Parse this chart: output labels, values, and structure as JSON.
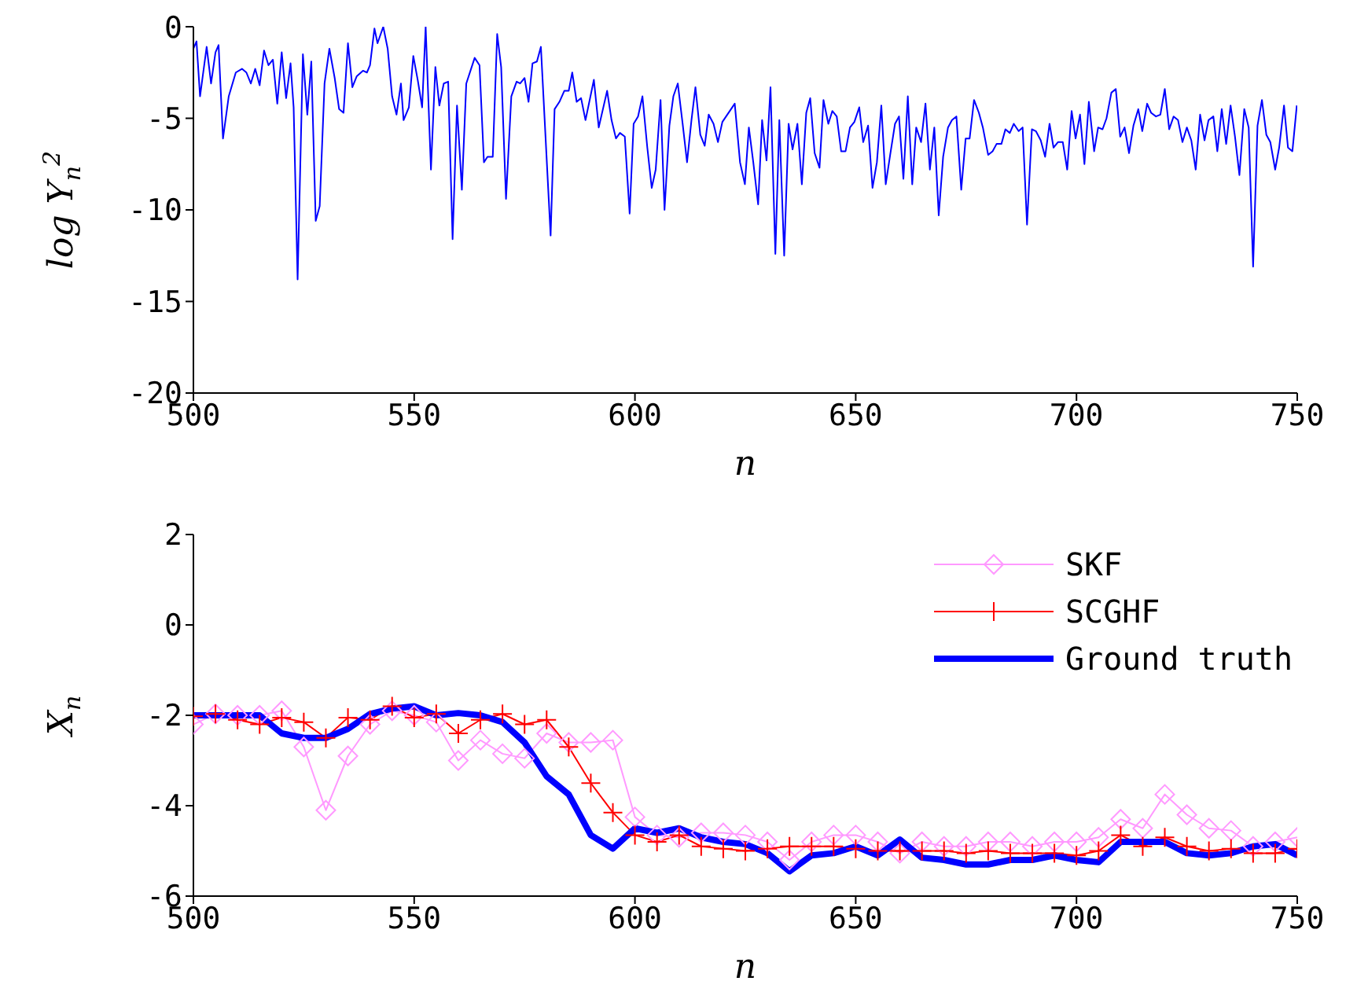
{
  "chart_data": [
    {
      "type": "line",
      "xlabel": "n",
      "ylabel": "log Y$_{n}$$^{2}$",
      "x": [
        500,
        500.7,
        501.5,
        503,
        504,
        505,
        505.7,
        506.7,
        508,
        509.6,
        511,
        512,
        513,
        514,
        515,
        516,
        517,
        518,
        519,
        520,
        521,
        522,
        522.7,
        523.6,
        524.8,
        525.8,
        526.7,
        527.7,
        528.6,
        529.7,
        530.8,
        532,
        533,
        534,
        535,
        536,
        537,
        538.4,
        539.3,
        540,
        541,
        541.7,
        543,
        544,
        545,
        546,
        547,
        547.6,
        548.8,
        549.8,
        550.8,
        551.8,
        552.6,
        553.8,
        554.8,
        555.7,
        556.7,
        557.7,
        558.7,
        559.7,
        560.8,
        561.8,
        563.7,
        564.8,
        565.8,
        566.6,
        567.8,
        568.8,
        569.7,
        570.8,
        572,
        573.2,
        574,
        575,
        575.9,
        576.8,
        577.8,
        578.7,
        580.9,
        581.8,
        582.9,
        584,
        585,
        585.8,
        586.8,
        587.8,
        588.8,
        590.7,
        591.8,
        593.7,
        594.7,
        595.7,
        596.6,
        597.7,
        598.8,
        599.7,
        600.7,
        601.7,
        602.8,
        603.8,
        604.7,
        605.8,
        606.7,
        607.8,
        608.7,
        609.7,
        610.8,
        611.8,
        612.8,
        613.7,
        614.8,
        615.8,
        616.7,
        617.8,
        618.8,
        619.8,
        622.6,
        623.8,
        624.9,
        625.8,
        626.8,
        627.9,
        628.8,
        629.8,
        630.7,
        631.8,
        632.7,
        633.8,
        634.8,
        635.7,
        636.8,
        637.8,
        638.8,
        639.7,
        640.7,
        641.8,
        642.7,
        643.8,
        644.7,
        645.7,
        646.7,
        647.7,
        648.7,
        649.7,
        650.8,
        651.7,
        652.8,
        653.8,
        654.8,
        655.8,
        656.8,
        657.8,
        658.9,
        659.8,
        660.8,
        661.8,
        662.8,
        663.7,
        664.8,
        665.8,
        666.8,
        667.8,
        668.8,
        669.8,
        670.9,
        671.8,
        672.8,
        673.9,
        674.9,
        675.8,
        676.8,
        677.9,
        678.8,
        680,
        681,
        681.9,
        683,
        683.9,
        684.9,
        685.8,
        686.9,
        687.8,
        688.8,
        689.9,
        690.8,
        691.9,
        692.9,
        693.9,
        694.8,
        695.8,
        696.9,
        697.9,
        698.9,
        699.8,
        700.8,
        701.8,
        702.8,
        704,
        704.9,
        705.9,
        706.8,
        707.9,
        708.9,
        709.9,
        710.9,
        711.9,
        712.9,
        714,
        714.9,
        716,
        716.9,
        718,
        719,
        720,
        721,
        722,
        723,
        724,
        725,
        726,
        727,
        728,
        729,
        729.9,
        731,
        731.9,
        732.9,
        733.9,
        734.9,
        735.9,
        736.9,
        738,
        739,
        740,
        741,
        742,
        743,
        743.9,
        745,
        745.9,
        747,
        747.9,
        748.9,
        749.9
      ],
      "series": [
        {
          "color": "#0000ff",
          "marker": "none",
          "values": [
            -1.2,
            -0.8,
            -3.8,
            -1.1,
            -3.1,
            -1.4,
            -1.0,
            -6.1,
            -3.8,
            -2.5,
            -2.3,
            -2.5,
            -3.1,
            -2.3,
            -3.2,
            -1.3,
            -2.1,
            -1.8,
            -4.2,
            -1.4,
            -3.9,
            -2.0,
            -4.4,
            -13.8,
            -1.5,
            -4.8,
            -1.9,
            -10.6,
            -9.8,
            -3.1,
            -1.2,
            -2.8,
            -4.5,
            -4.7,
            -0.9,
            -3.3,
            -2.7,
            -2.4,
            -2.5,
            -2.1,
            -0.1,
            -0.9,
            0,
            -1.2,
            -3.8,
            -4.8,
            -3.1,
            -5.1,
            -4.4,
            -1.6,
            -2.9,
            -4.4,
            0,
            -7.8,
            -2.2,
            -4.3,
            -3.1,
            -3.0,
            -11.6,
            -4.3,
            -8.9,
            -3.1,
            -1.7,
            -2.1,
            -7.4,
            -7.1,
            -7.1,
            -0.4,
            -2.2,
            -9.4,
            -3.8,
            -3.0,
            -3.1,
            -2.8,
            -4.1,
            -2.0,
            -1.9,
            -1.1,
            -11.4,
            -4.5,
            -4.1,
            -3.5,
            -3.5,
            -2.5,
            -4.1,
            -3.9,
            -5.1,
            -2.9,
            -5.5,
            -3.5,
            -5.1,
            -6.1,
            -5.8,
            -6.0,
            -10.2,
            -5.3,
            -4.9,
            -3.8,
            -6.6,
            -8.8,
            -7.8,
            -4.0,
            -10.0,
            -5.4,
            -3.8,
            -3.1,
            -5.3,
            -7.4,
            -5.1,
            -3.3,
            -5.9,
            -6.5,
            -4.8,
            -5.3,
            -6.3,
            -5.2,
            -4.2,
            -7.4,
            -8.6,
            -5.5,
            -7.4,
            -9.7,
            -5.1,
            -7.3,
            -3.3,
            -12.4,
            -5.1,
            -12.5,
            -5.3,
            -6.7,
            -5.3,
            -8.6,
            -4.7,
            -3.9,
            -6.9,
            -7.7,
            -4.0,
            -5.3,
            -4.6,
            -4.9,
            -6.8,
            -6.8,
            -5.5,
            -5.2,
            -4.4,
            -6.3,
            -5.4,
            -8.8,
            -7.4,
            -4.3,
            -8.6,
            -7.0,
            -5.3,
            -4.9,
            -8.3,
            -3.8,
            -8.6,
            -5.5,
            -6.3,
            -4.2,
            -7.8,
            -5.5,
            -10.3,
            -7.1,
            -5.5,
            -5.1,
            -4.9,
            -8.9,
            -6.1,
            -6.1,
            -4.0,
            -4.7,
            -5.5,
            -7.0,
            -6.8,
            -6.4,
            -6.4,
            -5.6,
            -5.8,
            -5.3,
            -5.7,
            -5.5,
            -10.8,
            -5.6,
            -5.7,
            -6.2,
            -7.1,
            -5.3,
            -6.6,
            -6.3,
            -6.3,
            -7.8,
            -4.6,
            -6.1,
            -4.8,
            -7.5,
            -4.1,
            -6.8,
            -5.5,
            -5.6,
            -5.0,
            -3.6,
            -3.4,
            -6.0,
            -5.5,
            -6.9,
            -5.4,
            -4.5,
            -5.7,
            -4.2,
            -4.7,
            -4.9,
            -4.8,
            -3.4,
            -5.6,
            -4.9,
            -5.1,
            -6.3,
            -5.5,
            -6.2,
            -7.8,
            -4.8,
            -6.2,
            -5.1,
            -4.9,
            -6.8,
            -4.5,
            -6.4,
            -4.3,
            -6.0,
            -8.1,
            -4.5,
            -5.5,
            -13.1,
            -5.4,
            -4.0,
            -5.9,
            -6.3,
            -7.8,
            -6.6,
            -4.3,
            -6.6,
            -6.8,
            -4.3
          ]
        }
      ],
      "xlim": [
        500,
        750
      ],
      "xticks": [
        500,
        550,
        600,
        650,
        700,
        750
      ],
      "ylim": [
        -20,
        0
      ],
      "yticks": [
        -20,
        -15,
        -10,
        -5,
        0
      ],
      "grid": false,
      "legend": false
    },
    {
      "type": "line",
      "xlabel": "n",
      "ylabel": "X$_{n}$",
      "x": [
        500,
        505,
        510,
        515,
        520,
        525,
        530,
        535,
        540,
        545,
        550,
        555,
        560,
        565,
        570,
        575,
        580,
        585,
        590,
        595,
        600,
        605,
        610,
        615,
        620,
        625,
        630,
        635,
        640,
        645,
        650,
        655,
        660,
        665,
        670,
        675,
        680,
        685,
        690,
        695,
        700,
        705,
        710,
        715,
        720,
        725,
        730,
        735,
        740,
        745,
        750
      ],
      "series": [
        {
          "name": "SKF",
          "color": "#ff99ff",
          "marker": "diamond",
          "values": [
            -2.2,
            -1.97,
            -2.0,
            -2.0,
            -1.9,
            -2.7,
            -4.1,
            -2.9,
            -2.2,
            -1.9,
            -2.0,
            -2.15,
            -3.0,
            -2.55,
            -2.85,
            -2.95,
            -2.4,
            -2.6,
            -2.6,
            -2.55,
            -4.25,
            -4.65,
            -4.7,
            -4.6,
            -4.6,
            -4.65,
            -4.8,
            -5.2,
            -4.8,
            -4.65,
            -4.65,
            -4.8,
            -5.05,
            -4.8,
            -4.9,
            -4.9,
            -4.8,
            -4.8,
            -4.9,
            -4.8,
            -4.8,
            -4.7,
            -4.3,
            -4.5,
            -3.75,
            -4.2,
            -4.5,
            -4.55,
            -4.9,
            -4.8,
            -4.7
          ]
        },
        {
          "name": "SCGHF",
          "color": "#ff0000",
          "marker": "cross",
          "values": [
            -2.02,
            -1.97,
            -2.1,
            -2.2,
            -2.05,
            -2.15,
            -2.5,
            -2.05,
            -2.1,
            -1.8,
            -2.05,
            -1.97,
            -2.4,
            -2.1,
            -1.97,
            -2.2,
            -2.1,
            -2.7,
            -3.5,
            -4.15,
            -4.65,
            -4.8,
            -4.65,
            -4.9,
            -4.95,
            -5.0,
            -4.95,
            -4.9,
            -4.9,
            -4.9,
            -4.95,
            -5.0,
            -5.0,
            -5.0,
            -5.0,
            -5.05,
            -5.0,
            -5.05,
            -5.05,
            -5.05,
            -5.1,
            -5.0,
            -4.65,
            -4.9,
            -4.7,
            -4.9,
            -5.0,
            -4.95,
            -5.05,
            -5.05,
            -4.95
          ]
        },
        {
          "name": "Ground truth",
          "color": "#0000ff",
          "marker": "none",
          "values": [
            -2.0,
            -2.0,
            -2.0,
            -2.0,
            -2.4,
            -2.5,
            -2.5,
            -2.3,
            -1.97,
            -1.85,
            -1.8,
            -2.0,
            -1.95,
            -2.0,
            -2.15,
            -2.6,
            -3.35,
            -3.75,
            -4.65,
            -4.95,
            -4.5,
            -4.6,
            -4.5,
            -4.7,
            -4.8,
            -4.85,
            -5.05,
            -5.45,
            -5.1,
            -5.05,
            -4.9,
            -5.1,
            -4.75,
            -5.15,
            -5.2,
            -5.3,
            -5.3,
            -5.2,
            -5.2,
            -5.1,
            -5.2,
            -5.25,
            -4.8,
            -4.8,
            -4.8,
            -5.05,
            -5.1,
            -5.05,
            -4.9,
            -4.85,
            -5.1
          ]
        }
      ],
      "xlim": [
        500,
        750
      ],
      "xticks": [
        500,
        550,
        600,
        650,
        700,
        750
      ],
      "ylim": [
        -6,
        2
      ],
      "yticks": [
        -6,
        -4,
        -2,
        0,
        2
      ],
      "grid": false,
      "legend": "top right"
    }
  ]
}
